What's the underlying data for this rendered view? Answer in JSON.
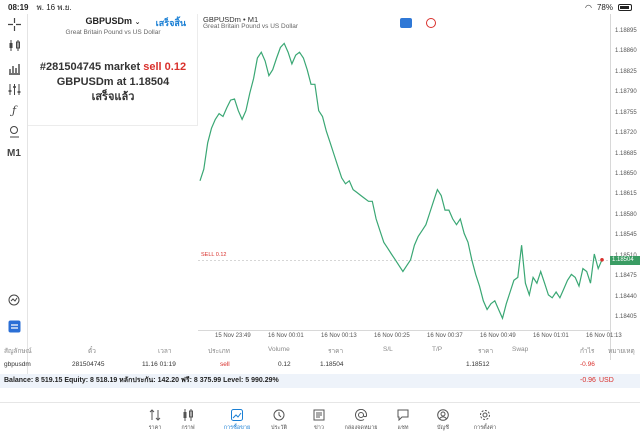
{
  "status_bar": {
    "time": "08:19",
    "date": "พ. 16 พ.ย.",
    "battery": "78%"
  },
  "toolbar": {
    "timeframe": "M1"
  },
  "notification": {
    "symbol": "GBPUSDm",
    "done_label": "เสร็จสิ้น",
    "description": "Great Britain Pound vs US Dollar",
    "line1_prefix": "#281504745 market ",
    "line1_sell": "sell 0.12",
    "line2": "GBPUSDm at 1.18504",
    "line3": "เสร็จแล้ว"
  },
  "chart": {
    "title": "GBPUSDm • M1",
    "subtitle": "Great Britain Pound vs US Dollar",
    "sell_label": "SELL 0.12",
    "current_price": "1.18504",
    "line_color": "#3aa774",
    "sell_color": "#d9302c"
  },
  "chart_data": {
    "type": "line",
    "title": "GBPUSDm • M1",
    "y_ticks": [
      "1.18895",
      "1.18860",
      "1.18825",
      "1.18790",
      "1.18755",
      "1.18720",
      "1.18685",
      "1.18650",
      "1.18615",
      "1.18580",
      "1.18545",
      "1.18510",
      "1.18475",
      "1.18440",
      "1.18405"
    ],
    "x_ticks": [
      "15 Nov 23:49",
      "16 Nov 00:01",
      "16 Nov 00:13",
      "16 Nov 00:25",
      "16 Nov 00:37",
      "16 Nov 00:49",
      "16 Nov 01:01",
      "16 Nov 01:13"
    ],
    "ylim": [
      1.18385,
      1.18915
    ],
    "sell_level": 1.18504,
    "values": [
      1.1864,
      1.1866,
      1.18705,
      1.1873,
      1.18745,
      1.18755,
      1.1875,
      1.18765,
      1.18778,
      1.1878,
      1.1876,
      1.18745,
      1.1876,
      1.1879,
      1.18815,
      1.1885,
      1.1886,
      1.18845,
      1.1882,
      1.1883,
      1.1885,
      1.18868,
      1.18875,
      1.1886,
      1.1884,
      1.18855,
      1.1886,
      1.1885,
      1.1883,
      1.18805,
      1.18805,
      1.1876,
      1.1875,
      1.18725,
      1.18705,
      1.18685,
      1.18665,
      1.18645,
      1.18635,
      1.1864,
      1.18625,
      1.1862,
      1.18615,
      1.1861,
      1.18605,
      1.18605,
      1.18575,
      1.18555,
      1.18535,
      1.18525,
      1.18515,
      1.18505,
      1.18495,
      1.18485,
      1.18495,
      1.18505,
      1.1853,
      1.18545,
      1.18555,
      1.18565,
      1.18585,
      1.18605,
      1.18625,
      1.18615,
      1.1859,
      1.1859,
      1.18575,
      1.18565,
      1.18575,
      1.1855,
      1.18535,
      1.18505,
      1.1848,
      1.1846,
      1.18435,
      1.1842,
      1.1843,
      1.18435,
      1.1842,
      1.18405,
      1.1843,
      1.1845,
      1.1847,
      1.18475,
      1.1853,
      1.18465,
      1.18445,
      1.18475,
      1.18465,
      1.18485,
      1.18465,
      1.18445,
      1.1844,
      1.1845,
      1.1844,
      1.18455,
      1.1847,
      1.1848,
      1.18475,
      1.1846,
      1.1849,
      1.18485,
      1.18465,
      1.18515,
      1.1849,
      1.18505
    ]
  },
  "table": {
    "headers": [
      "สัญลักษณ์",
      "ตั๋ว",
      "เวลา",
      "ประเภท",
      "Volume",
      "ราคา",
      "S/L",
      "T/P",
      "ราคา",
      "Swap",
      "กำไร",
      "หมายเหตุ"
    ],
    "row": {
      "symbol": "gbpusdm",
      "ticket": "281504745",
      "time": "11.16 01:19",
      "type": "sell",
      "volume": "0.12",
      "price": "1.18504",
      "current_price": "1.18512",
      "profit": "-0.96"
    },
    "balance_text": "Balance: 8 519.15 Equity: 8 518.19 หลักประกัน: 142.20 ฟรี: 8 375.99 Level: 5 990.29%",
    "balance_profit": "-0.96",
    "currency": "USD"
  },
  "bottom_nav": {
    "items": [
      {
        "label": "ราคา",
        "icon": "quotes-icon"
      },
      {
        "label": "กราฟ",
        "icon": "chart-icon"
      },
      {
        "label": "การซื้อขาย",
        "icon": "trade-icon"
      },
      {
        "label": "ประวัติ",
        "icon": "history-icon"
      },
      {
        "label": "ข่าว",
        "icon": "news-icon"
      },
      {
        "label": "กล่องจดหมาย",
        "icon": "mailbox-icon"
      },
      {
        "label": "แชท",
        "icon": "chat-icon"
      },
      {
        "label": "บัญชี",
        "icon": "account-icon"
      },
      {
        "label": "การตั้งค่า",
        "icon": "settings-icon"
      }
    ],
    "active_index": 2
  }
}
